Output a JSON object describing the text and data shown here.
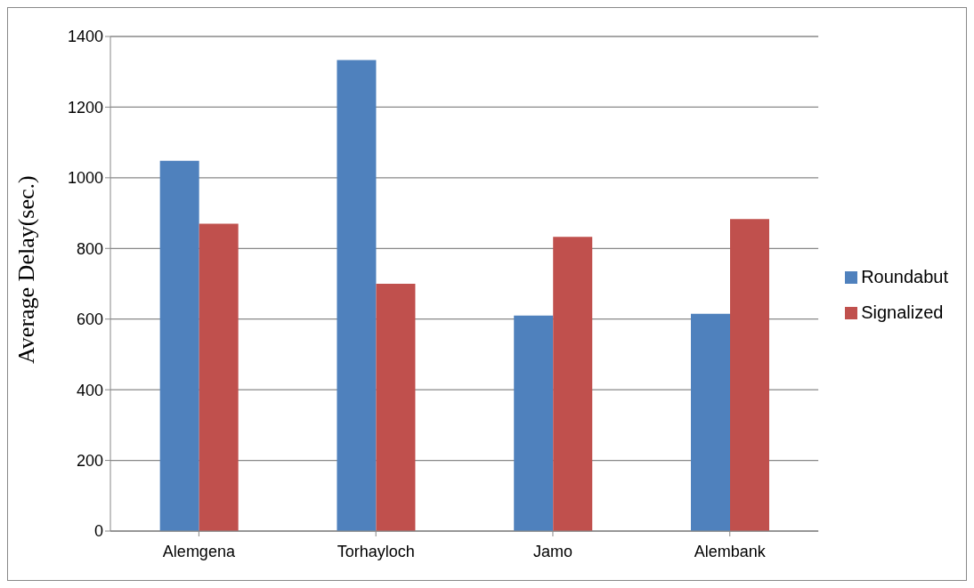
{
  "chart_data": {
    "type": "bar",
    "ylabel": "Average Delay(sec.)",
    "categories": [
      "Alemgena",
      "Torhayloch",
      "Jamo",
      "Alembank"
    ],
    "series": [
      {
        "name": "Roundabut",
        "color": "#4f81bd",
        "values": [
          1048,
          1333,
          610,
          615
        ]
      },
      {
        "name": "Signalized",
        "color": "#c0504d",
        "values": [
          870,
          700,
          833,
          883
        ]
      }
    ],
    "ylim": [
      0,
      1400
    ],
    "yticks": [
      0,
      200,
      400,
      600,
      800,
      1000,
      1200,
      1400
    ],
    "grid": "y",
    "legend": "right"
  }
}
